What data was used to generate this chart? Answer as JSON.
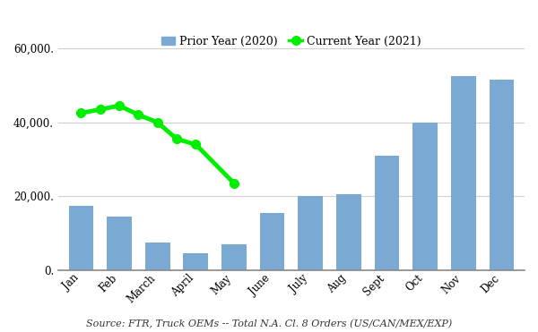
{
  "months": [
    "Jan",
    "Feb",
    "March",
    "April",
    "May",
    "June",
    "July",
    "Aug",
    "Sept",
    "Oct",
    "Nov",
    "Dec"
  ],
  "prior_year_values": [
    17500,
    14500,
    7500,
    4500,
    7000,
    15500,
    20000,
    20500,
    31000,
    40000,
    52500,
    51500
  ],
  "current_year_x": [
    0,
    0.5,
    1,
    1.5,
    2,
    2.5,
    3,
    4
  ],
  "current_year_y": [
    42500,
    43500,
    44500,
    42000,
    40000,
    35500,
    34000,
    23500
  ],
  "bar_color": "#7aaad4",
  "line_color": "#00ee00",
  "line_marker": "o",
  "line_marker_color": "#00ee00",
  "source_text": "Source: FTR, Truck OEMs -- Total N.A. Cl. 8 Orders (US/CAN/MEX/EXP)",
  "ylim": [
    0,
    65000
  ],
  "yticks": [
    0,
    20000,
    40000,
    60000
  ],
  "ytick_labels": [
    "0.",
    "20,000.",
    "40,000.",
    "60,000."
  ],
  "legend_prior": "Prior Year (2020)",
  "legend_current": "Current Year (2021)",
  "bg_color": "#ffffff",
  "grid_color": "#d0d0d0",
  "source_fontsize": 8.0,
  "legend_fontsize": 9,
  "tick_fontsize": 8.5
}
